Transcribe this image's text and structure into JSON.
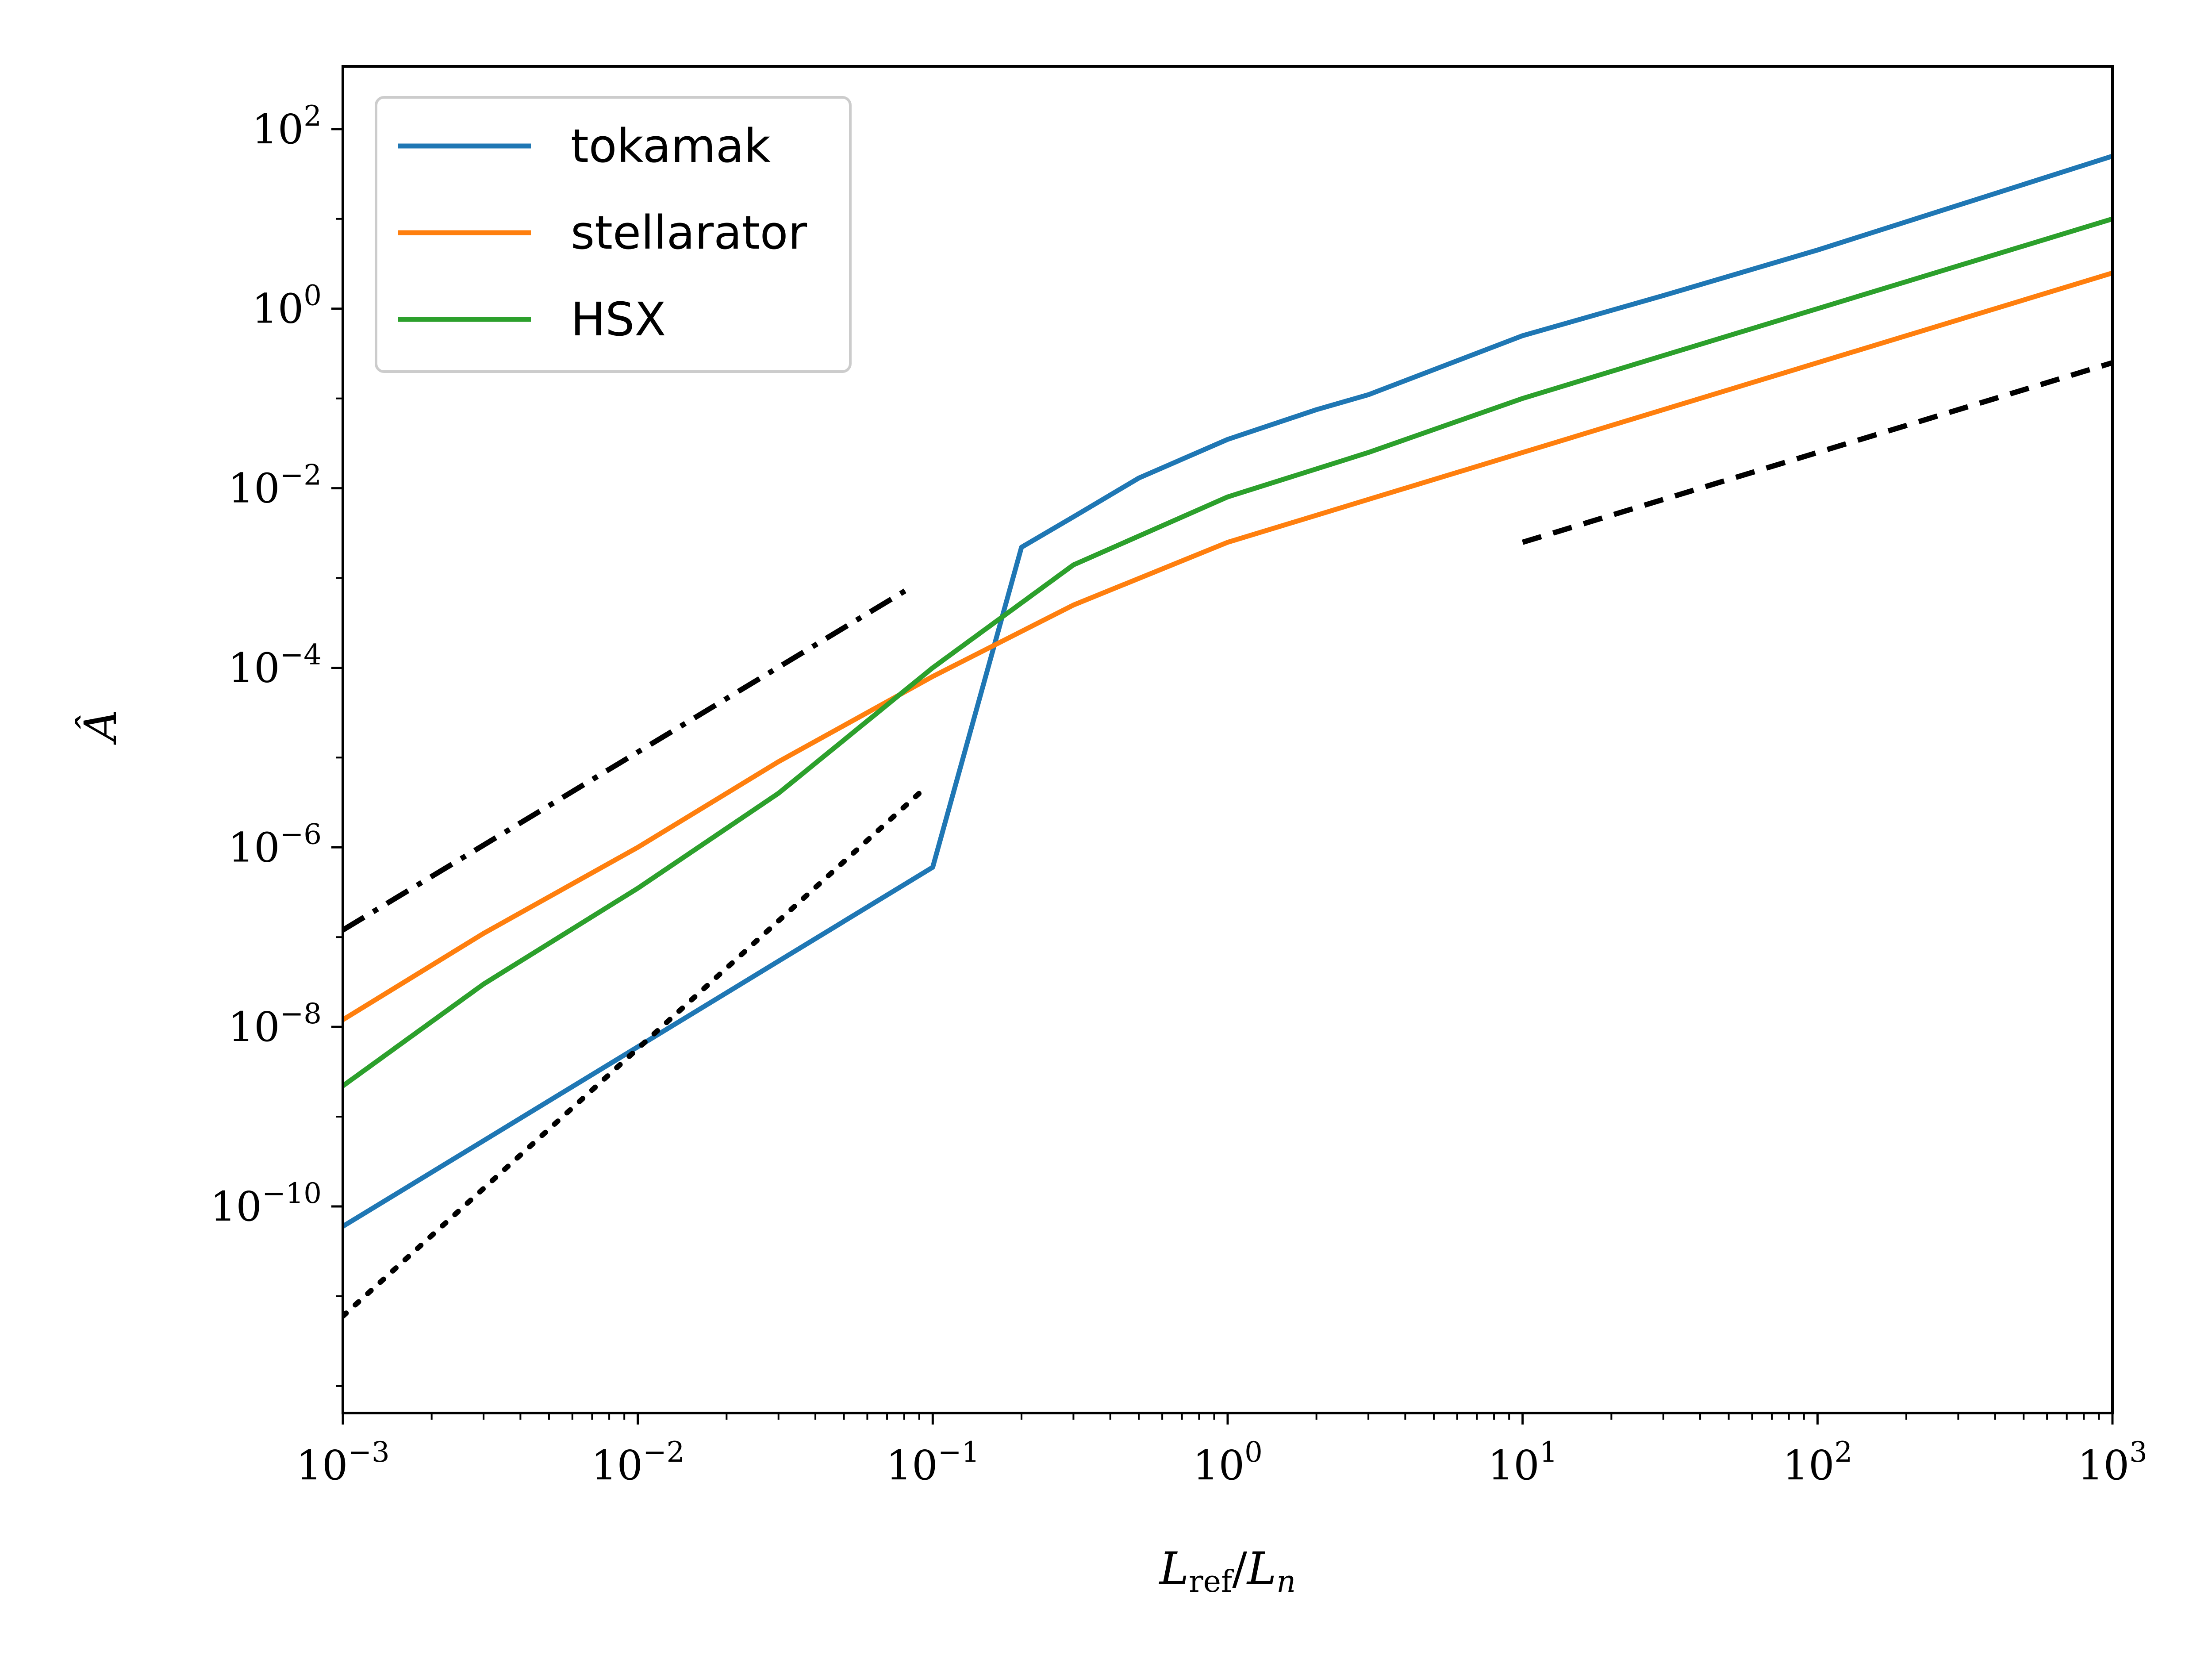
{
  "chart_data": {
    "type": "line",
    "title": "",
    "xscale": "log",
    "yscale": "log",
    "xlim": [
      0.001,
      1000
    ],
    "ylim": [
      5e-13,
      500
    ],
    "xlabel": {
      "main": "L",
      "sub": "ref",
      "sep": "/",
      "main2": "L",
      "sub2": "n"
    },
    "ylabel": "Â",
    "xticks": [
      {
        "value": 0.001,
        "base": "10",
        "exp": "−3"
      },
      {
        "value": 0.01,
        "base": "10",
        "exp": "−2"
      },
      {
        "value": 0.1,
        "base": "10",
        "exp": "−1"
      },
      {
        "value": 1,
        "base": "10",
        "exp": "0"
      },
      {
        "value": 10,
        "base": "10",
        "exp": "1"
      },
      {
        "value": 100,
        "base": "10",
        "exp": "2"
      },
      {
        "value": 1000,
        "base": "10",
        "exp": "3"
      }
    ],
    "yticks": [
      {
        "value": 1e-10,
        "base": "10",
        "exp": "−10"
      },
      {
        "value": 1e-08,
        "base": "10",
        "exp": "−8"
      },
      {
        "value": 1e-06,
        "base": "10",
        "exp": "−6"
      },
      {
        "value": 0.0001,
        "base": "10",
        "exp": "−4"
      },
      {
        "value": 0.01,
        "base": "10",
        "exp": "−2"
      },
      {
        "value": 1,
        "base": "10",
        "exp": "0"
      },
      {
        "value": 100,
        "base": "10",
        "exp": "2"
      }
    ],
    "legend_position": "top-left",
    "series": [
      {
        "name": "tokamak",
        "color": "#1f77b4",
        "style": "solid",
        "x": [
          0.001,
          0.003,
          0.01,
          0.03,
          0.1,
          0.2,
          0.3,
          0.5,
          1,
          2,
          3,
          10,
          30,
          100,
          1000
        ],
        "y": [
          6e-11,
          5.4e-10,
          6e-09,
          5.4e-08,
          6e-07,
          0.0022,
          0.0048,
          0.013,
          0.035,
          0.075,
          0.11,
          0.5,
          1.4,
          4.5,
          50
        ]
      },
      {
        "name": "stellarator",
        "color": "#ff7f0e",
        "style": "solid",
        "x": [
          0.001,
          0.003,
          0.01,
          0.03,
          0.1,
          0.3,
          1,
          3,
          10,
          30,
          100,
          1000
        ],
        "y": [
          1.2e-08,
          1.1e-07,
          1e-06,
          9e-06,
          8e-05,
          0.0005,
          0.0025,
          0.0075,
          0.025,
          0.075,
          0.25,
          2.5
        ]
      },
      {
        "name": "HSX",
        "color": "#2ca02c",
        "style": "solid",
        "x": [
          0.001,
          0.003,
          0.01,
          0.03,
          0.1,
          0.3,
          1,
          3,
          10,
          30,
          100,
          1000
        ],
        "y": [
          2.2e-09,
          3e-08,
          3.5e-07,
          4e-06,
          0.0001,
          0.0014,
          0.008,
          0.025,
          0.1,
          0.3,
          1.0,
          10
        ]
      },
      {
        "name": "",
        "color": "#000000",
        "style": "dashdot",
        "x": [
          0.001,
          0.085
        ],
        "y": [
          1.2e-07,
          0.0008
        ]
      },
      {
        "name": "",
        "color": "#000000",
        "style": "dotted",
        "x": [
          0.001,
          0.09
        ],
        "y": [
          6e-12,
          4e-06
        ]
      },
      {
        "name": "",
        "color": "#000000",
        "style": "dashed",
        "x": [
          10,
          1000
        ],
        "y": [
          0.0025,
          0.25
        ]
      }
    ]
  }
}
